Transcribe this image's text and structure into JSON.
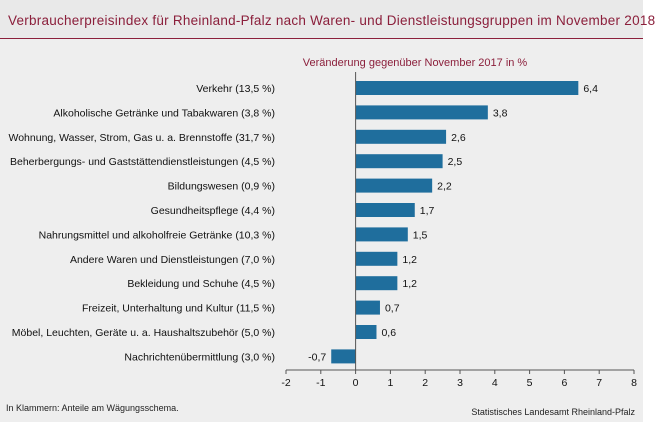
{
  "header": {
    "title": "Verbraucherpreisindex für Rheinland-Pfalz nach Waren- und Dienstleistungsgruppen im November 2018"
  },
  "footer": {
    "footnote": "In Klammern: Anteile am Wägungsschema.",
    "source": "Statistisches Landesamt Rheinland-Pfalz"
  },
  "colors": {
    "bar": "#1f6e9d",
    "title": "#8b1f3b",
    "background": "#eeeeee"
  },
  "chart_data": {
    "type": "bar",
    "orientation": "horizontal",
    "subtitle": "Veränderung  gegenüber November 2017 in %",
    "categories": [
      "Verkehr (13,5 %)",
      "Alkoholische Getränke und Tabakwaren (3,8 %)",
      "Wohnung, Wasser, Strom, Gas u. a. Brennstoffe (31,7 %)",
      "Beherbergungs- und Gaststättendienstleistungen (4,5 %)",
      "Bildungswesen (0,9 %)",
      "Gesundheitspflege (4,4 %)",
      "Nahrungsmittel und alkoholfreie Getränke (10,3 %)",
      "Andere Waren und Dienstleistungen (7,0 %)",
      "Bekleidung und Schuhe (4,5 %)",
      "Freizeit, Unterhaltung und Kultur (11,5 %)",
      "Möbel, Leuchten, Geräte u. a. Haushaltszubehör  (5,0 %)",
      "Nachrichtenübermittlung (3,0 %)"
    ],
    "values": [
      6.4,
      3.8,
      2.6,
      2.5,
      2.2,
      1.7,
      1.5,
      1.2,
      1.2,
      0.7,
      0.6,
      -0.7
    ],
    "value_labels": [
      "6,4",
      "3,8",
      "2,6",
      "2,5",
      "2,2",
      "1,7",
      "1,5",
      "1,2",
      "1,2",
      "0,7",
      "0,6",
      "-0,7"
    ],
    "xlim": [
      -2,
      8
    ],
    "xticks": [
      -2,
      -1,
      0,
      1,
      2,
      3,
      4,
      5,
      6,
      7,
      8
    ],
    "grid": false,
    "legend": "none"
  }
}
